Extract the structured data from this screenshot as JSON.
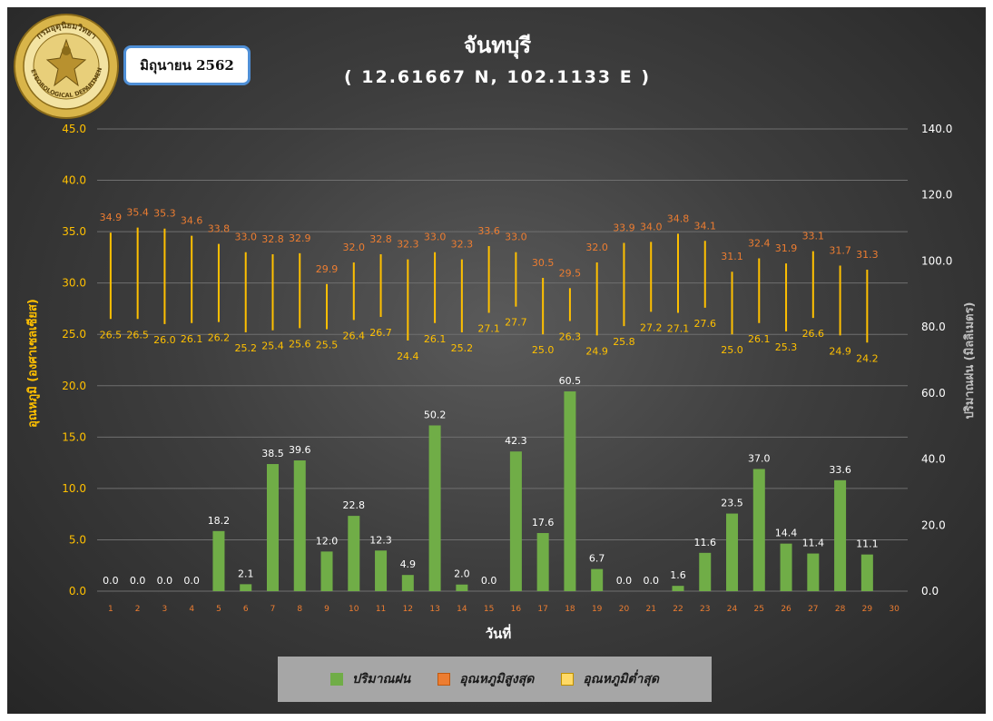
{
  "header": {
    "title": "จันทบุรี",
    "coords": "( 12.61667 N,  102.1133 E )",
    "month_label": "มิถุนายน 2562",
    "logo_text_top": "กรมอุตุนิยมวิทยา",
    "logo_text_bottom": "METEOROLOGICAL DEPARTMENT"
  },
  "legend": {
    "rain": "ปริมาณฝน",
    "tmax": "อุณหภูมิสูงสุด",
    "tmin": "อุณหภูมิต่ำสุด"
  },
  "colors": {
    "rain": "#70ad47",
    "tmax_label": "#ed7d31",
    "tmin_label": "#ffc000",
    "range_line": "#ffc000",
    "left_axis": "#ffc000",
    "right_axis": "#ffffff",
    "x_ticks": "#ed7d31"
  },
  "chart_data": {
    "type": "bar",
    "xlabel": "วันที่",
    "ylabel_left": "อุณหภูมิ (องศาเซลเซียส)",
    "ylabel_right": "ปริมาณฝน (มิลลิเมตร)",
    "ylim_left": [
      0,
      45
    ],
    "ylim_right": [
      0,
      140
    ],
    "y_ticks_left": [
      "0.0",
      "5.0",
      "10.0",
      "15.0",
      "20.0",
      "25.0",
      "30.0",
      "35.0",
      "40.0",
      "45.0"
    ],
    "y_ticks_right": [
      "0.0",
      "20.0",
      "40.0",
      "60.0",
      "80.0",
      "100.0",
      "120.0",
      "140.0"
    ],
    "categories": [
      "1",
      "2",
      "3",
      "4",
      "5",
      "6",
      "7",
      "8",
      "9",
      "10",
      "11",
      "12",
      "13",
      "14",
      "15",
      "16",
      "17",
      "18",
      "19",
      "20",
      "21",
      "22",
      "23",
      "24",
      "25",
      "26",
      "27",
      "28",
      "29",
      "30"
    ],
    "grid": true,
    "legend_position": "bottom",
    "series": [
      {
        "name": "ปริมาณฝน",
        "type": "bar",
        "axis": "right",
        "values": [
          0.0,
          0.0,
          0.0,
          0.0,
          18.2,
          2.1,
          38.5,
          39.6,
          12.0,
          22.8,
          12.3,
          4.9,
          50.2,
          2.0,
          0.0,
          42.3,
          17.6,
          60.5,
          6.7,
          0.0,
          0.0,
          1.6,
          11.6,
          23.5,
          37.0,
          14.4,
          11.4,
          33.6,
          11.1,
          null
        ],
        "labels": [
          "0.0",
          "0.0",
          "0.0",
          "0.0",
          "18.2",
          "2.1",
          "38.5",
          "39.6",
          "12.0",
          "22.8",
          "12.3",
          "4.9",
          "50.2",
          "2.0",
          "0.0",
          "42.3",
          "17.6",
          "60.5",
          "6.7",
          "0.0",
          "0.0",
          "1.6",
          "11.6",
          "23.5",
          "37.0",
          "14.4",
          "11.4",
          "33.6",
          "11.1",
          ""
        ]
      },
      {
        "name": "อุณหภูมิสูงสุด",
        "type": "range-high",
        "axis": "left",
        "values": [
          34.9,
          35.4,
          35.3,
          34.6,
          33.8,
          33.0,
          32.8,
          32.9,
          29.9,
          32.0,
          32.8,
          32.3,
          33.0,
          32.3,
          33.6,
          33.0,
          30.5,
          29.5,
          32.0,
          33.9,
          34.0,
          34.8,
          34.1,
          31.1,
          32.4,
          31.9,
          33.1,
          31.7,
          31.3,
          null
        ],
        "labels": [
          "34.9",
          "35.4",
          "35.3",
          "34.6",
          "33.8",
          "33.0",
          "32.8",
          "32.9",
          "29.9",
          "32.0",
          "32.8",
          "32.3",
          "33.0",
          "32.3",
          "33.6",
          "33.0",
          "30.5",
          "29.5",
          "32.0",
          "33.9",
          "34.0",
          "34.8",
          "34.1",
          "31.1",
          "32.4",
          "31.9",
          "33.1",
          "31.7",
          "31.3",
          ""
        ]
      },
      {
        "name": "อุณหภูมิต่ำสุด",
        "type": "range-low",
        "axis": "left",
        "values": [
          26.5,
          26.5,
          26.0,
          26.1,
          26.2,
          25.2,
          25.4,
          25.6,
          25.5,
          26.4,
          26.7,
          24.4,
          26.1,
          25.2,
          27.1,
          27.7,
          25.0,
          26.3,
          24.9,
          25.8,
          27.2,
          27.1,
          27.6,
          25.0,
          26.1,
          25.3,
          26.6,
          24.9,
          24.2,
          null
        ],
        "labels": [
          "26.5",
          "26.5",
          "26.0",
          "26.1",
          "26.2",
          "25.2",
          "25.4",
          "25.6",
          "25.5",
          "26.4",
          "26.7",
          "24.4",
          "26.1",
          "25.2",
          "27.1",
          "27.7",
          "25.0",
          "26.3",
          "24.9",
          "25.8",
          "27.2",
          "27.1",
          "27.6",
          "25.0",
          "26.1",
          "25.3",
          "26.6",
          "24.9",
          "24.2",
          ""
        ]
      }
    ]
  }
}
